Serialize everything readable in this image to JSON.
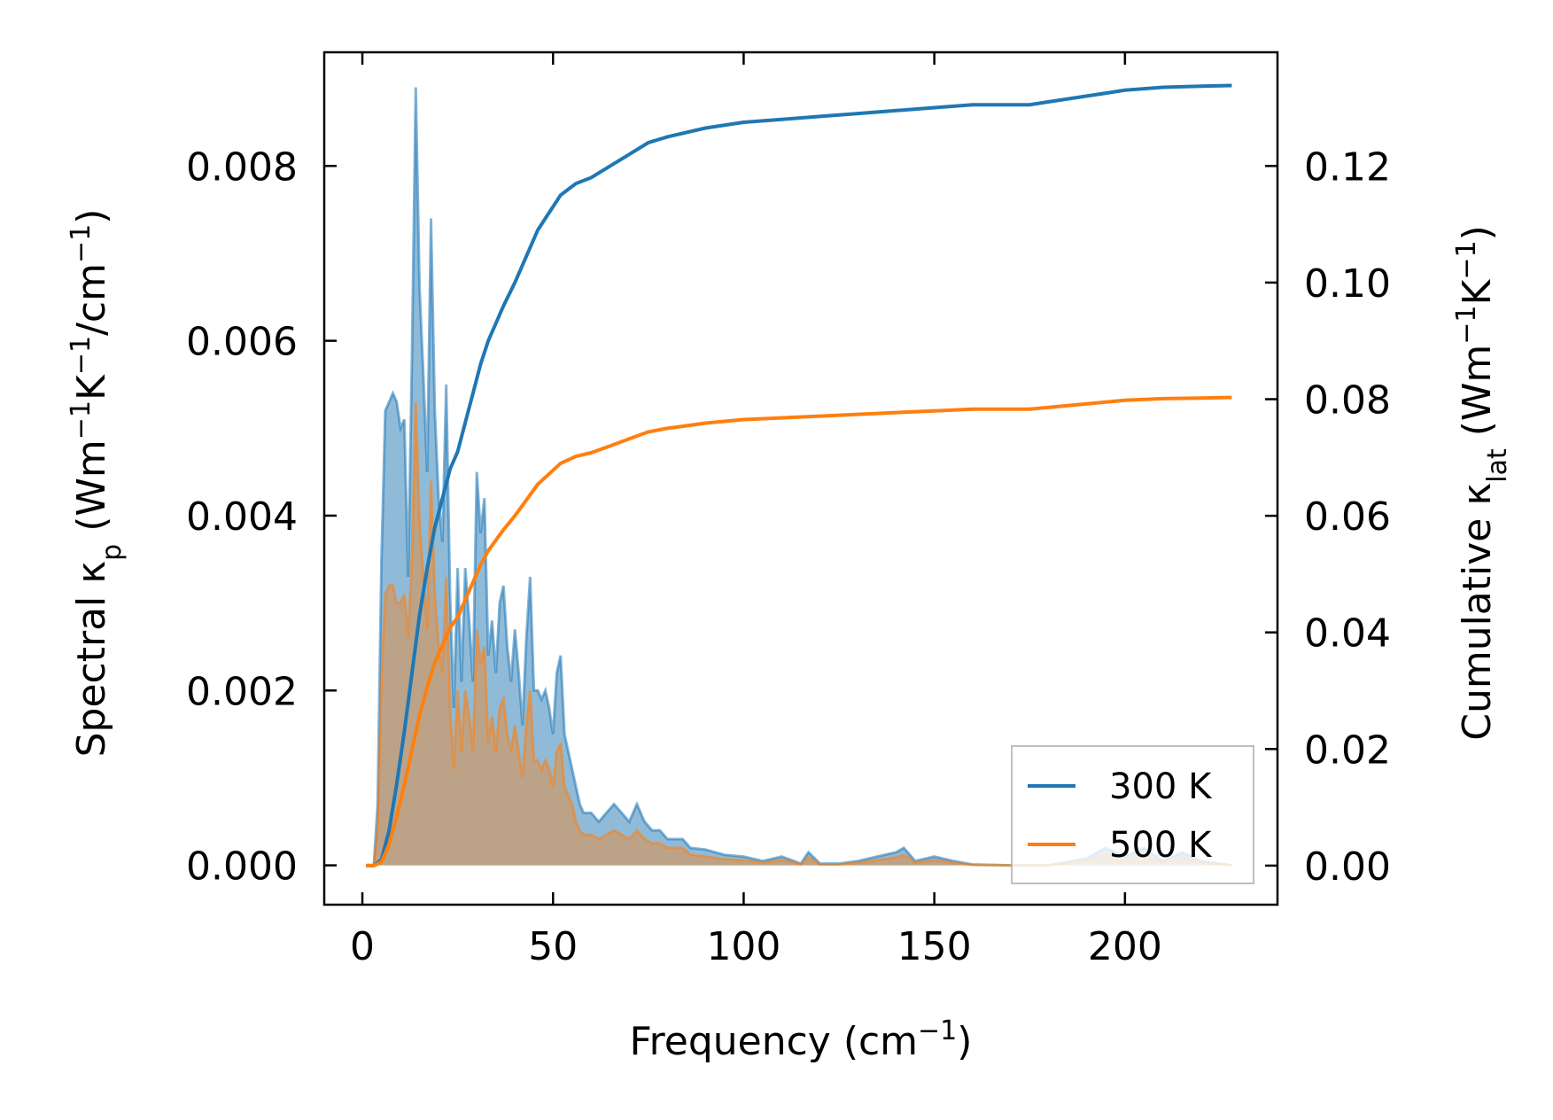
{
  "chart_data": {
    "type": "area",
    "xlabel": "Frequency (cm",
    "xlabel_sup": "−1",
    "xlabel_end": ")",
    "ylabel_left": {
      "pre": "Spectral κ",
      "sub": "p",
      "unit_a": " (Wm",
      "sup_a": "−1",
      "unit_b": "K",
      "sup_b": "−1",
      "unit_c": "/cm",
      "sup_c": "−1",
      "end": ")"
    },
    "ylabel_right": {
      "pre": "Cumulative κ",
      "sub": "lat",
      "unit_a": " (Wm",
      "sup_a": "−1",
      "unit_b": "K",
      "sup_b": "−1",
      "end": ")"
    },
    "xlim": [
      -10,
      240
    ],
    "ylim_left": [
      -0.00045,
      0.0093
    ],
    "ylim_right": [
      -0.0067,
      0.1395
    ],
    "xticks": [
      0,
      50,
      100,
      150,
      200
    ],
    "xtick_labels": [
      "0",
      "50",
      "100",
      "150",
      "200"
    ],
    "yticks_left": [
      0,
      0.002,
      0.004,
      0.006,
      0.008
    ],
    "ytick_labels_left": [
      "0.000",
      "0.002",
      "0.004",
      "0.006",
      "0.008"
    ],
    "yticks_right": [
      0,
      0.02,
      0.04,
      0.06,
      0.08,
      0.1,
      0.12
    ],
    "ytick_labels_right": [
      "0.00",
      "0.02",
      "0.04",
      "0.06",
      "0.08",
      "0.10",
      "0.12"
    ],
    "legend_position": "lower-right",
    "series": [
      {
        "name": "300 K",
        "color": "#1f77b4",
        "spectral": [
          [
            1,
            0
          ],
          [
            3,
            0
          ],
          [
            4,
            0.0007
          ],
          [
            5,
            0.0035
          ],
          [
            6,
            0.0052
          ],
          [
            7,
            0.0053
          ],
          [
            8,
            0.0054
          ],
          [
            9,
            0.0053
          ],
          [
            10,
            0.005
          ],
          [
            11,
            0.0051
          ],
          [
            12,
            0.0033
          ],
          [
            13,
            0.0058
          ],
          [
            14,
            0.0089
          ],
          [
            15,
            0.0066
          ],
          [
            16,
            0.0056
          ],
          [
            17,
            0.0045
          ],
          [
            18,
            0.0074
          ],
          [
            19,
            0.0052
          ],
          [
            20,
            0.0042
          ],
          [
            21,
            0.0037
          ],
          [
            22,
            0.0055
          ],
          [
            23,
            0.0031
          ],
          [
            24,
            0.0018
          ],
          [
            25,
            0.0034
          ],
          [
            26,
            0.0021
          ],
          [
            27,
            0.0034
          ],
          [
            28,
            0.0028
          ],
          [
            29,
            0.0021
          ],
          [
            30,
            0.0045
          ],
          [
            31,
            0.0038
          ],
          [
            32,
            0.0042
          ],
          [
            33,
            0.0024
          ],
          [
            34,
            0.0028
          ],
          [
            35,
            0.0022
          ],
          [
            36,
            0.003
          ],
          [
            37,
            0.0032
          ],
          [
            38,
            0.0025
          ],
          [
            39,
            0.0021
          ],
          [
            40,
            0.0027
          ],
          [
            41,
            0.0022
          ],
          [
            42,
            0.0016
          ],
          [
            43,
            0.0026
          ],
          [
            44,
            0.0033
          ],
          [
            45,
            0.002
          ],
          [
            46,
            0.002
          ],
          [
            47,
            0.0019
          ],
          [
            48,
            0.002
          ],
          [
            49,
            0.0018
          ],
          [
            50,
            0.0015
          ],
          [
            51,
            0.0022
          ],
          [
            52,
            0.0024
          ],
          [
            53,
            0.0015
          ],
          [
            54,
            0.0013
          ],
          [
            55,
            0.0011
          ],
          [
            56,
            0.0009
          ],
          [
            57,
            0.0007
          ],
          [
            58,
            0.0006
          ],
          [
            60,
            0.0006
          ],
          [
            62,
            0.0005
          ],
          [
            64,
            0.0006
          ],
          [
            66,
            0.0007
          ],
          [
            68,
            0.0006
          ],
          [
            70,
            0.0005
          ],
          [
            72,
            0.0007
          ],
          [
            74,
            0.0005
          ],
          [
            76,
            0.0004
          ],
          [
            78,
            0.0004
          ],
          [
            80,
            0.0003
          ],
          [
            84,
            0.0003
          ],
          [
            86,
            0.0002
          ],
          [
            90,
            0.00018
          ],
          [
            95,
            0.00012
          ],
          [
            100,
            0.0001
          ],
          [
            105,
            5e-05
          ],
          [
            110,
            0.0001
          ],
          [
            115,
            2e-05
          ],
          [
            117,
            0.00015
          ],
          [
            120,
            2e-05
          ],
          [
            125,
            2e-05
          ],
          [
            130,
            5e-05
          ],
          [
            135,
            0.0001
          ],
          [
            140,
            0.00015
          ],
          [
            142,
            0.0002
          ],
          [
            145,
            5e-05
          ],
          [
            150,
            0.0001
          ],
          [
            155,
            5e-05
          ],
          [
            160,
            1e-05
          ],
          [
            170,
            0
          ],
          [
            180,
            0
          ],
          [
            190,
            8e-05
          ],
          [
            195,
            0.0002
          ],
          [
            200,
            0.0001
          ],
          [
            205,
            0.0002
          ],
          [
            210,
            5e-05
          ],
          [
            215,
            0.00015
          ],
          [
            220,
            5e-05
          ],
          [
            228,
            0
          ]
        ],
        "cumulative": [
          [
            1,
            0
          ],
          [
            3,
            0
          ],
          [
            5,
            0.001
          ],
          [
            7,
            0.006
          ],
          [
            9,
            0.014
          ],
          [
            11,
            0.023
          ],
          [
            13,
            0.033
          ],
          [
            15,
            0.043
          ],
          [
            17,
            0.051
          ],
          [
            19,
            0.058
          ],
          [
            21,
            0.063
          ],
          [
            23,
            0.068
          ],
          [
            25,
            0.071
          ],
          [
            27,
            0.076
          ],
          [
            29,
            0.081
          ],
          [
            31,
            0.086
          ],
          [
            33,
            0.09
          ],
          [
            35,
            0.093
          ],
          [
            37,
            0.096
          ],
          [
            40,
            0.1
          ],
          [
            42,
            0.103
          ],
          [
            44,
            0.106
          ],
          [
            46,
            0.109
          ],
          [
            48,
            0.111
          ],
          [
            50,
            0.113
          ],
          [
            52,
            0.115
          ],
          [
            54,
            0.116
          ],
          [
            56,
            0.117
          ],
          [
            60,
            0.118
          ],
          [
            65,
            0.12
          ],
          [
            70,
            0.122
          ],
          [
            75,
            0.124
          ],
          [
            80,
            0.125
          ],
          [
            90,
            0.1265
          ],
          [
            100,
            0.1275
          ],
          [
            110,
            0.128
          ],
          [
            120,
            0.1285
          ],
          [
            130,
            0.129
          ],
          [
            140,
            0.1295
          ],
          [
            150,
            0.13
          ],
          [
            160,
            0.1305
          ],
          [
            170,
            0.1305
          ],
          [
            175,
            0.1305
          ],
          [
            180,
            0.131
          ],
          [
            190,
            0.132
          ],
          [
            195,
            0.1325
          ],
          [
            200,
            0.133
          ],
          [
            210,
            0.1335
          ],
          [
            220,
            0.1337
          ],
          [
            228,
            0.1338
          ]
        ]
      },
      {
        "name": "500 K",
        "color": "#ff7f0e",
        "spectral": [
          [
            1,
            0
          ],
          [
            3,
            0
          ],
          [
            4,
            0.0004
          ],
          [
            5,
            0.0021
          ],
          [
            6,
            0.0031
          ],
          [
            7,
            0.0032
          ],
          [
            8,
            0.0032
          ],
          [
            9,
            0.003
          ],
          [
            10,
            0.003
          ],
          [
            11,
            0.0031
          ],
          [
            12,
            0.0026
          ],
          [
            13,
            0.0035
          ],
          [
            14,
            0.0053
          ],
          [
            15,
            0.0039
          ],
          [
            16,
            0.0033
          ],
          [
            17,
            0.0027
          ],
          [
            18,
            0.0044
          ],
          [
            19,
            0.0031
          ],
          [
            20,
            0.0025
          ],
          [
            21,
            0.0022
          ],
          [
            22,
            0.0033
          ],
          [
            23,
            0.0018
          ],
          [
            24,
            0.0011
          ],
          [
            25,
            0.002
          ],
          [
            26,
            0.0013
          ],
          [
            27,
            0.002
          ],
          [
            28,
            0.0017
          ],
          [
            29,
            0.0013
          ],
          [
            30,
            0.0027
          ],
          [
            31,
            0.0023
          ],
          [
            32,
            0.0025
          ],
          [
            33,
            0.0014
          ],
          [
            34,
            0.0017
          ],
          [
            35,
            0.0013
          ],
          [
            36,
            0.0018
          ],
          [
            37,
            0.0019
          ],
          [
            38,
            0.0015
          ],
          [
            39,
            0.0013
          ],
          [
            40,
            0.0016
          ],
          [
            41,
            0.0013
          ],
          [
            42,
            0.001
          ],
          [
            43,
            0.0016
          ],
          [
            44,
            0.002
          ],
          [
            45,
            0.0012
          ],
          [
            46,
            0.0012
          ],
          [
            47,
            0.0011
          ],
          [
            48,
            0.0012
          ],
          [
            49,
            0.0011
          ],
          [
            50,
            0.0009
          ],
          [
            51,
            0.0013
          ],
          [
            52,
            0.0014
          ],
          [
            53,
            0.0009
          ],
          [
            54,
            0.0008
          ],
          [
            55,
            0.0007
          ],
          [
            56,
            0.0005
          ],
          [
            57,
            0.0004
          ],
          [
            58,
            0.00035
          ],
          [
            60,
            0.00035
          ],
          [
            62,
            0.0003
          ],
          [
            64,
            0.00035
          ],
          [
            66,
            0.0004
          ],
          [
            68,
            0.00035
          ],
          [
            70,
            0.0003
          ],
          [
            72,
            0.0004
          ],
          [
            74,
            0.0003
          ],
          [
            76,
            0.00025
          ],
          [
            78,
            0.00025
          ],
          [
            80,
            0.0002
          ],
          [
            84,
            0.0002
          ],
          [
            86,
            0.00012
          ],
          [
            90,
            0.0001
          ],
          [
            95,
            7e-05
          ],
          [
            100,
            6e-05
          ],
          [
            105,
            3e-05
          ],
          [
            110,
            6e-05
          ],
          [
            115,
            1e-05
          ],
          [
            117,
            9e-05
          ],
          [
            120,
            1e-05
          ],
          [
            125,
            1e-05
          ],
          [
            130,
            3e-05
          ],
          [
            135,
            6e-05
          ],
          [
            140,
            9e-05
          ],
          [
            142,
            0.00012
          ],
          [
            145,
            3e-05
          ],
          [
            150,
            6e-05
          ],
          [
            155,
            3e-05
          ],
          [
            160,
            5e-06
          ],
          [
            170,
            0
          ],
          [
            180,
            0
          ],
          [
            190,
            5e-05
          ],
          [
            195,
            0.00012
          ],
          [
            200,
            6e-05
          ],
          [
            205,
            0.00012
          ],
          [
            210,
            3e-05
          ],
          [
            215,
            9e-05
          ],
          [
            220,
            3e-05
          ],
          [
            228,
            0
          ]
        ],
        "cumulative": [
          [
            1,
            0
          ],
          [
            3,
            0
          ],
          [
            5,
            0.0006
          ],
          [
            7,
            0.0036
          ],
          [
            9,
            0.0084
          ],
          [
            11,
            0.0138
          ],
          [
            13,
            0.0198
          ],
          [
            15,
            0.0258
          ],
          [
            17,
            0.0306
          ],
          [
            19,
            0.0348
          ],
          [
            21,
            0.0378
          ],
          [
            23,
            0.0408
          ],
          [
            25,
            0.0426
          ],
          [
            27,
            0.0456
          ],
          [
            29,
            0.0486
          ],
          [
            31,
            0.0516
          ],
          [
            33,
            0.054
          ],
          [
            35,
            0.0558
          ],
          [
            37,
            0.0576
          ],
          [
            40,
            0.06
          ],
          [
            42,
            0.0618
          ],
          [
            44,
            0.0636
          ],
          [
            46,
            0.0654
          ],
          [
            48,
            0.0666
          ],
          [
            50,
            0.0678
          ],
          [
            52,
            0.069
          ],
          [
            54,
            0.0696
          ],
          [
            56,
            0.0702
          ],
          [
            60,
            0.0708
          ],
          [
            65,
            0.072
          ],
          [
            70,
            0.0732
          ],
          [
            75,
            0.0744
          ],
          [
            80,
            0.075
          ],
          [
            90,
            0.0759
          ],
          [
            100,
            0.0765
          ],
          [
            110,
            0.0768
          ],
          [
            120,
            0.0771
          ],
          [
            130,
            0.0774
          ],
          [
            140,
            0.0777
          ],
          [
            150,
            0.078
          ],
          [
            160,
            0.0783
          ],
          [
            170,
            0.0783
          ],
          [
            175,
            0.0783
          ],
          [
            180,
            0.0786
          ],
          [
            190,
            0.0792
          ],
          [
            195,
            0.0795
          ],
          [
            200,
            0.0798
          ],
          [
            210,
            0.0801
          ],
          [
            220,
            0.0802
          ],
          [
            228,
            0.0803
          ]
        ]
      }
    ]
  }
}
